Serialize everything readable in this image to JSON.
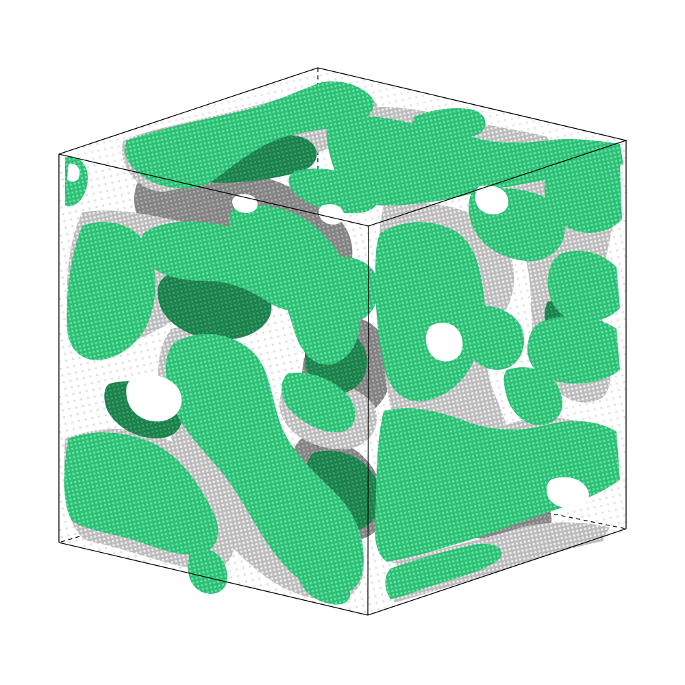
{
  "scene": {
    "background": "#ffffff",
    "box_edge_color": "#000000",
    "phase_color": "#2fbf76",
    "phase_color_light": "#4fdc92",
    "phase_color_dark": "#157a45",
    "interface_color": "#c8c8c8",
    "interface_color_dark": "#7a7a7a"
  }
}
